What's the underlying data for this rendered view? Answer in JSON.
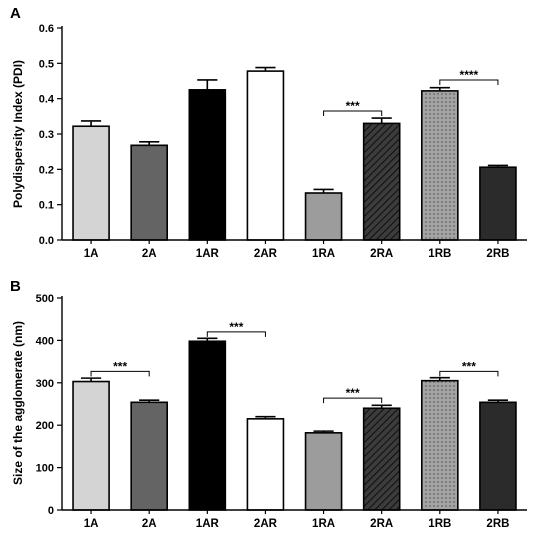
{
  "chart_data": [
    {
      "type": "bar",
      "panel_label": "A",
      "title": "",
      "xlabel": "",
      "ylabel": "Polydispersity Index (PDI)",
      "ylim": [
        0,
        0.6
      ],
      "yticks": [
        "0.0",
        "0.1",
        "0.2",
        "0.3",
        "0.4",
        "0.5",
        "0.6"
      ],
      "categories": [
        "1A",
        "2A",
        "1AR",
        "2AR",
        "1RA",
        "2RA",
        "1RB",
        "2RB"
      ],
      "values": [
        0.322,
        0.268,
        0.425,
        0.478,
        0.133,
        0.33,
        0.422,
        0.206
      ],
      "errors": [
        0.015,
        0.01,
        0.028,
        0.01,
        0.01,
        0.015,
        0.009,
        0.005
      ],
      "fills": [
        "#d4d4d4",
        "#646464",
        "#000000",
        "#ffffff",
        "#9c9c9c",
        "hatch-dark",
        "dots-gray",
        "#2b2b2b"
      ],
      "annotations": [
        {
          "from": "1RA",
          "to": "2RA",
          "y": 0.365,
          "label": "***"
        },
        {
          "from": "1RB",
          "to": "2RB",
          "y": 0.453,
          "label": "****"
        }
      ]
    },
    {
      "type": "bar",
      "panel_label": "B",
      "title": "",
      "xlabel": "",
      "ylabel": "Size of the agglomerate (nm)",
      "ylim": [
        0,
        500
      ],
      "yticks": [
        "0",
        "100",
        "200",
        "300",
        "400",
        "500"
      ],
      "categories": [
        "1A",
        "2A",
        "1AR",
        "2AR",
        "1RA",
        "2RA",
        "1RB",
        "2RB"
      ],
      "values": [
        303,
        254,
        398,
        215,
        182,
        240,
        305,
        254
      ],
      "errors": [
        8,
        5,
        7,
        5,
        4,
        7,
        7,
        5
      ],
      "fills": [
        "#d4d4d4",
        "#646464",
        "#000000",
        "#ffffff",
        "#9c9c9c",
        "hatch-dark",
        "dots-gray",
        "#2b2b2b"
      ],
      "annotations": [
        {
          "from": "1A",
          "to": "2A",
          "y": 327,
          "label": "***"
        },
        {
          "from": "1AR",
          "to": "2AR",
          "y": 420,
          "label": "***"
        },
        {
          "from": "1RA",
          "to": "2RA",
          "y": 264,
          "label": "***"
        },
        {
          "from": "1RB",
          "to": "2RB",
          "y": 327,
          "label": "***"
        }
      ]
    }
  ]
}
